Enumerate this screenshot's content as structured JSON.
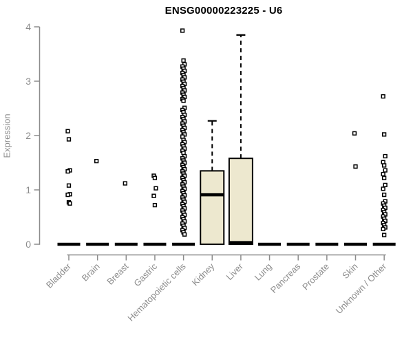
{
  "page": {
    "background": "#ffffff"
  },
  "chart_data": {
    "type": "boxplot",
    "title": "ENSG00000223225 - U6",
    "ylabel": "Expression",
    "xlabel": "",
    "ylim": [
      0,
      4
    ],
    "yticks": [
      0,
      1,
      2,
      3,
      4
    ],
    "grid": false,
    "legend_position": "none",
    "box_fill": "#EDE8CF",
    "box_border": "#000000",
    "median_color": "#000000",
    "whisker_style": "dashed",
    "axis_color": "#8c8c8c",
    "text_color": "#8c8c8c",
    "outlier_marker": "open-square",
    "categories": [
      {
        "label": "Bladder",
        "q1": 0,
        "median": 0,
        "q3": 0,
        "whisker_low": 0,
        "whisker_high": 0,
        "outliers": [
          2.08,
          1.93,
          1.36,
          1.34,
          1.08,
          0.92,
          0.91,
          0.77,
          0.75
        ]
      },
      {
        "label": "Brain",
        "q1": 0,
        "median": 0,
        "q3": 0,
        "whisker_low": 0,
        "whisker_high": 0,
        "outliers": [
          1.53
        ]
      },
      {
        "label": "Breast",
        "q1": 0,
        "median": 0,
        "q3": 0,
        "whisker_low": 0,
        "whisker_high": 0,
        "outliers": [
          1.12
        ]
      },
      {
        "label": "Gastric",
        "q1": 0,
        "median": 0,
        "q3": 0,
        "whisker_low": 0,
        "whisker_high": 0,
        "outliers": [
          1.26,
          1.22,
          1.03,
          0.89,
          0.72
        ]
      },
      {
        "label": "Hematopoietic cells",
        "q1": 0,
        "median": 0,
        "q3": 0,
        "whisker_low": 0,
        "whisker_high": 0,
        "outliers": [
          3.93,
          3.38,
          3.31,
          3.27,
          3.23,
          3.19,
          3.15,
          3.11,
          3.07,
          3.03,
          2.99,
          2.95,
          2.91,
          2.87,
          2.83,
          2.79,
          2.75,
          2.71,
          2.67,
          2.64,
          2.51,
          2.47,
          2.43,
          2.38,
          2.34,
          2.3,
          2.26,
          2.22,
          2.18,
          2.14,
          2.1,
          2.06,
          2.02,
          1.98,
          1.92,
          1.88,
          1.84,
          1.8,
          1.76,
          1.72,
          1.68,
          1.62,
          1.58,
          1.54,
          1.5,
          1.46,
          1.42,
          1.38,
          1.34,
          1.3,
          1.26,
          1.22,
          1.18,
          1.14,
          1.1,
          1.06,
          1.02,
          0.98,
          0.94,
          0.9,
          0.86,
          0.82,
          0.78,
          0.74,
          0.7,
          0.66,
          0.62,
          0.58,
          0.54,
          0.5,
          0.46,
          0.42,
          0.38,
          0.34,
          0.3,
          0.26,
          0.22,
          0.18
        ]
      },
      {
        "label": "Kidney",
        "q1": 0,
        "median": 0.91,
        "q3": 1.35,
        "whisker_low": 0,
        "whisker_high": 2.27,
        "outliers": []
      },
      {
        "label": "Liver",
        "q1": 0,
        "median": 0.03,
        "q3": 1.58,
        "whisker_low": 0,
        "whisker_high": 3.85,
        "outliers": []
      },
      {
        "label": "Lung",
        "q1": 0,
        "median": 0,
        "q3": 0,
        "whisker_low": 0,
        "whisker_high": 0,
        "outliers": []
      },
      {
        "label": "Pancreas",
        "q1": 0,
        "median": 0,
        "q3": 0,
        "whisker_low": 0,
        "whisker_high": 0,
        "outliers": []
      },
      {
        "label": "Prostate",
        "q1": 0,
        "median": 0,
        "q3": 0,
        "whisker_low": 0,
        "whisker_high": 0,
        "outliers": []
      },
      {
        "label": "Skin",
        "q1": 0,
        "median": 0,
        "q3": 0,
        "whisker_low": 0,
        "whisker_high": 0,
        "outliers": [
          2.04,
          1.43
        ]
      },
      {
        "label": "Unknown / Other",
        "q1": 0,
        "median": 0,
        "q3": 0,
        "whisker_low": 0,
        "whisker_high": 0,
        "outliers": [
          2.72,
          2.02,
          1.62,
          1.51,
          1.45,
          1.36,
          1.29,
          1.22,
          1.09,
          1.02,
          0.91,
          0.79,
          0.75,
          0.71,
          0.67,
          0.63,
          0.59,
          0.55,
          0.51,
          0.47,
          0.43,
          0.39,
          0.35,
          0.31,
          0.28,
          0.17
        ]
      }
    ]
  }
}
